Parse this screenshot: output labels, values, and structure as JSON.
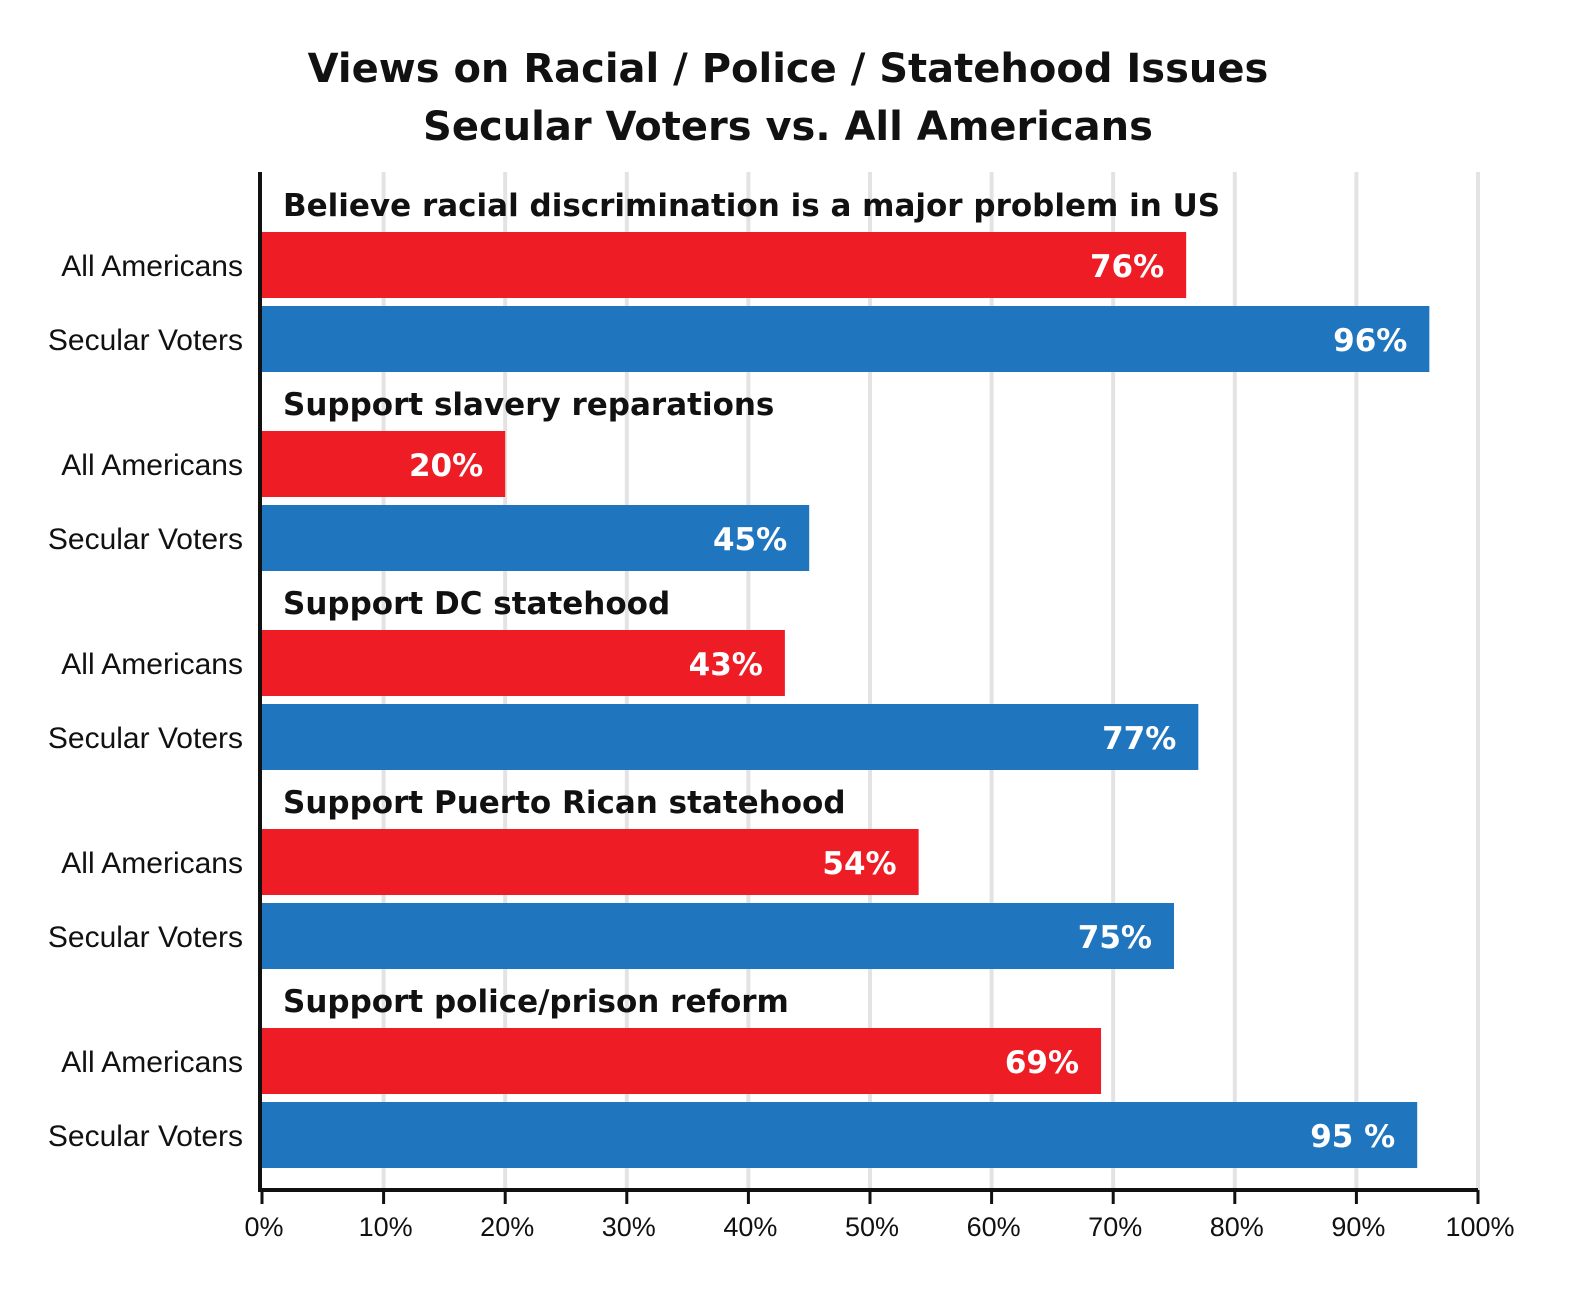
{
  "chart_data": {
    "type": "bar",
    "orientation": "horizontal",
    "title": "Views on Racial / Police / Statehood Issues",
    "subtitle": "Secular Voters vs. All Americans",
    "categories": [
      "Believe racial discrimination is a major problem in US",
      "Support slavery reparations",
      "Support DC statehood",
      "Support Puerto Rican statehood",
      "Support police/prison reform"
    ],
    "series": [
      {
        "name": "All Americans",
        "color": "#ee1c25",
        "values": [
          76,
          20,
          43,
          54,
          69
        ],
        "labels": [
          "76%",
          "20%",
          "43%",
          "54%",
          "69%"
        ]
      },
      {
        "name": "Secular Voters",
        "color": "#1f75be",
        "values": [
          96,
          45,
          77,
          75,
          95
        ],
        "labels": [
          "96%",
          "45%",
          "77%",
          "75%",
          "95 %"
        ]
      }
    ],
    "xlim": [
      0,
      100
    ],
    "xticks": [
      0,
      10,
      20,
      30,
      40,
      50,
      60,
      70,
      80,
      90,
      100
    ],
    "xtick_labels": [
      "0%",
      "10%",
      "20%",
      "30%",
      "40%",
      "50%",
      "60%",
      "70%",
      "80%",
      "90%",
      "100%"
    ],
    "grid": true,
    "grid_color": "#e3e3e3",
    "xlabel": "",
    "ylabel": ""
  }
}
